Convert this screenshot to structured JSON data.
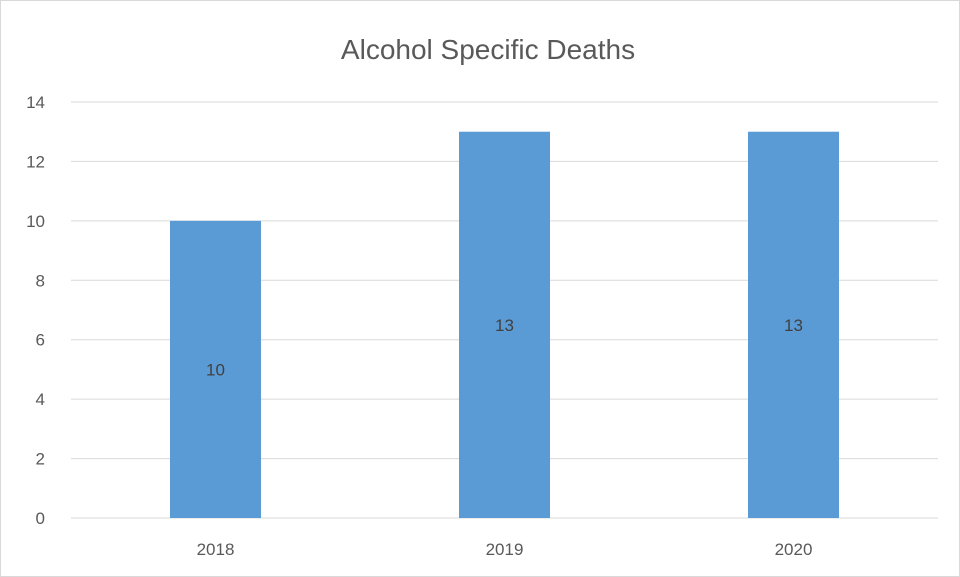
{
  "chart_data": {
    "type": "bar",
    "title": "Alcohol Specific Deaths",
    "xlabel": "",
    "ylabel": "",
    "categories": [
      "2018",
      "2019",
      "2020"
    ],
    "series": [
      {
        "values": [
          10,
          13,
          13
        ]
      }
    ],
    "ylim": [
      0,
      14
    ],
    "yticks": [
      0,
      2,
      4,
      6,
      8,
      10,
      12,
      14
    ],
    "grid": true,
    "legend": "none",
    "data_labels": true,
    "colors": {
      "bar": "#5b9bd5"
    }
  }
}
